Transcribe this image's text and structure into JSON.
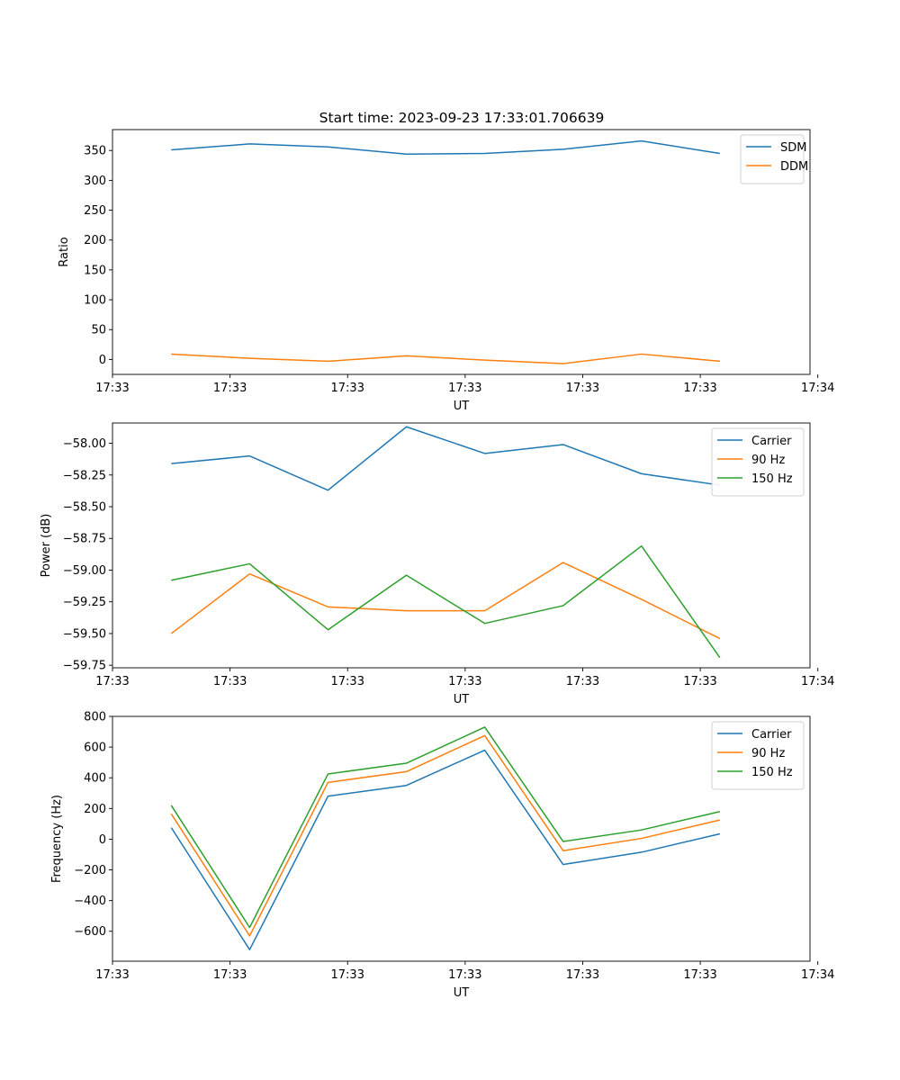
{
  "figure_title": "Start time: 2023-09-23 17:33:01.706639",
  "colors": {
    "blue": "#1f77b4",
    "orange": "#ff7f0e",
    "green": "#2ca02c"
  },
  "chart_data": [
    {
      "type": "line",
      "title": "Start time: 2023-09-23 17:33:01.706639",
      "xlabel": "UT",
      "ylabel": "Ratio",
      "x": [
        1,
        2,
        3,
        4,
        5,
        6,
        7,
        8
      ],
      "xlim": [
        0.25,
        9.15
      ],
      "xticks": [
        0.25,
        1.75,
        3.25,
        4.75,
        6.25,
        7.75,
        9.25
      ],
      "xtick_labels": [
        "17:33",
        "17:33",
        "17:33",
        "17:33",
        "17:33",
        "17:33",
        "17:34"
      ],
      "ylim": [
        -25,
        385
      ],
      "yticks": [
        0,
        50,
        100,
        150,
        200,
        250,
        300,
        350
      ],
      "ytick_labels": [
        "0",
        "50",
        "100",
        "150",
        "200",
        "250",
        "300",
        "350"
      ],
      "legend_position": "top-right",
      "series": [
        {
          "name": "SDM",
          "color": "#1f77b4",
          "values": [
            351,
            361,
            356,
            344,
            345,
            352,
            366,
            345
          ]
        },
        {
          "name": "DDM",
          "color": "#ff7f0e",
          "values": [
            9,
            2,
            -3,
            6,
            -1,
            -7,
            9,
            -3
          ]
        }
      ]
    },
    {
      "type": "line",
      "title": "",
      "xlabel": "UT",
      "ylabel": "Power (dB)",
      "x": [
        1,
        2,
        3,
        4,
        5,
        6,
        7,
        8
      ],
      "xlim": [
        0.25,
        9.15
      ],
      "xticks": [
        0.25,
        1.75,
        3.25,
        4.75,
        6.25,
        7.75,
        9.25
      ],
      "xtick_labels": [
        "17:33",
        "17:33",
        "17:33",
        "17:33",
        "17:33",
        "17:33",
        "17:34"
      ],
      "ylim": [
        -59.77,
        -57.84
      ],
      "yticks": [
        -59.75,
        -59.5,
        -59.25,
        -59.0,
        -58.75,
        -58.5,
        -58.25,
        -58.0
      ],
      "ytick_labels": [
        "−59.75",
        "−59.50",
        "−59.25",
        "−59.00",
        "−58.75",
        "−58.50",
        "−58.25",
        "−58.00"
      ],
      "legend_position": "top-right",
      "series": [
        {
          "name": "Carrier",
          "color": "#1f77b4",
          "values": [
            -58.16,
            -58.1,
            -58.37,
            -57.87,
            -58.08,
            -58.01,
            -58.24,
            -58.33
          ]
        },
        {
          "name": "90 Hz",
          "color": "#ff7f0e",
          "values": [
            -59.5,
            -59.03,
            -59.29,
            -59.32,
            -59.32,
            -58.94,
            -59.23,
            -59.54
          ]
        },
        {
          "name": "150 Hz",
          "color": "#2ca02c",
          "values": [
            -59.08,
            -58.95,
            -59.47,
            -59.04,
            -59.42,
            -59.28,
            -58.81,
            -59.69
          ]
        }
      ]
    },
    {
      "type": "line",
      "title": "",
      "xlabel": "UT",
      "ylabel": "Frequency (Hz)",
      "x": [
        1,
        2,
        3,
        4,
        5,
        6,
        7,
        8
      ],
      "xlim": [
        0.25,
        9.15
      ],
      "xticks": [
        0.25,
        1.75,
        3.25,
        4.75,
        6.25,
        7.75,
        9.25
      ],
      "xtick_labels": [
        "17:33",
        "17:33",
        "17:33",
        "17:33",
        "17:33",
        "17:33",
        "17:34"
      ],
      "ylim": [
        -795,
        800
      ],
      "yticks": [
        -600,
        -400,
        -200,
        0,
        200,
        400,
        600,
        800
      ],
      "ytick_labels": [
        "−600",
        "−400",
        "−200",
        "0",
        "200",
        "400",
        "600",
        "800"
      ],
      "legend_position": "top-right",
      "series": [
        {
          "name": "Carrier",
          "color": "#1f77b4",
          "values": [
            75,
            -720,
            280,
            350,
            580,
            -165,
            -85,
            35
          ]
        },
        {
          "name": "90 Hz",
          "color": "#ff7f0e",
          "values": [
            165,
            -630,
            370,
            440,
            675,
            -75,
            5,
            125
          ]
        },
        {
          "name": "150 Hz",
          "color": "#2ca02c",
          "values": [
            220,
            -575,
            425,
            495,
            730,
            -15,
            60,
            180
          ]
        }
      ]
    }
  ]
}
